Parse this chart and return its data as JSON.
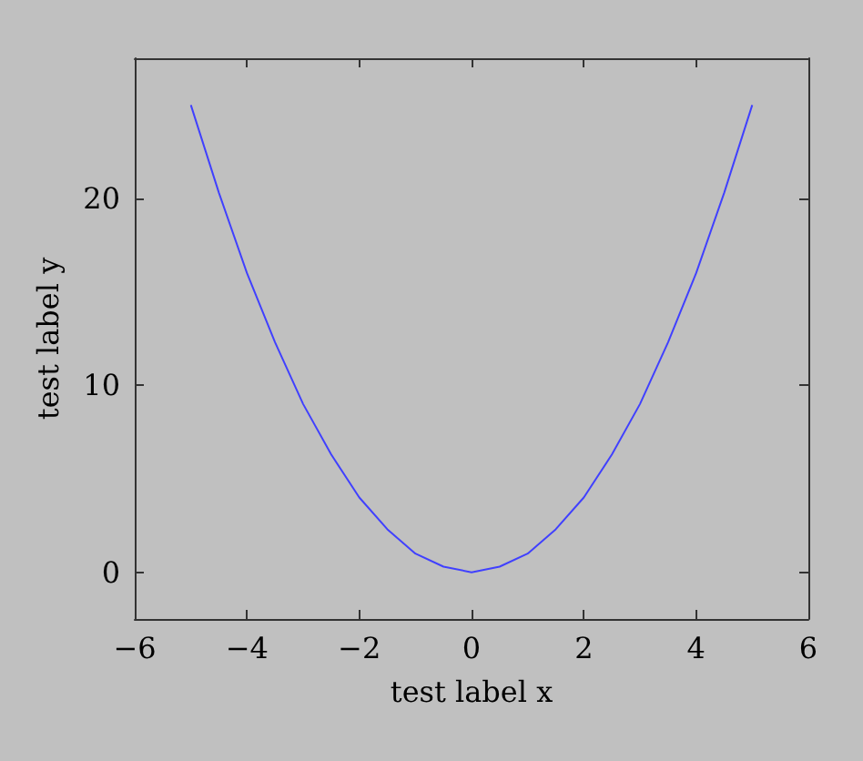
{
  "chart_data": {
    "type": "line",
    "xlabel": "test label x",
    "ylabel": "test label y",
    "x": [
      -5,
      -4.5,
      -4,
      -3.5,
      -3,
      -2.5,
      -2,
      -1.5,
      -1,
      -0.5,
      0,
      0.5,
      1,
      1.5,
      2,
      2.5,
      3,
      3.5,
      4,
      4.5,
      5
    ],
    "series": [
      {
        "color": "#4040ff",
        "values": [
          25,
          20.3,
          16,
          12.3,
          9,
          6.3,
          4,
          2.3,
          1,
          0.3,
          0,
          0.3,
          1,
          2.3,
          4,
          6.3,
          9,
          12.3,
          16,
          20.3,
          25
        ]
      }
    ],
    "xlim": [
      -6,
      6
    ],
    "xticks": [
      -6,
      -4,
      -2,
      0,
      2,
      4,
      6
    ],
    "ylim": [
      -2.5,
      27.5
    ],
    "yticks": [
      0,
      10,
      20
    ],
    "grid": false,
    "marker": "none",
    "line_style": "solid"
  }
}
